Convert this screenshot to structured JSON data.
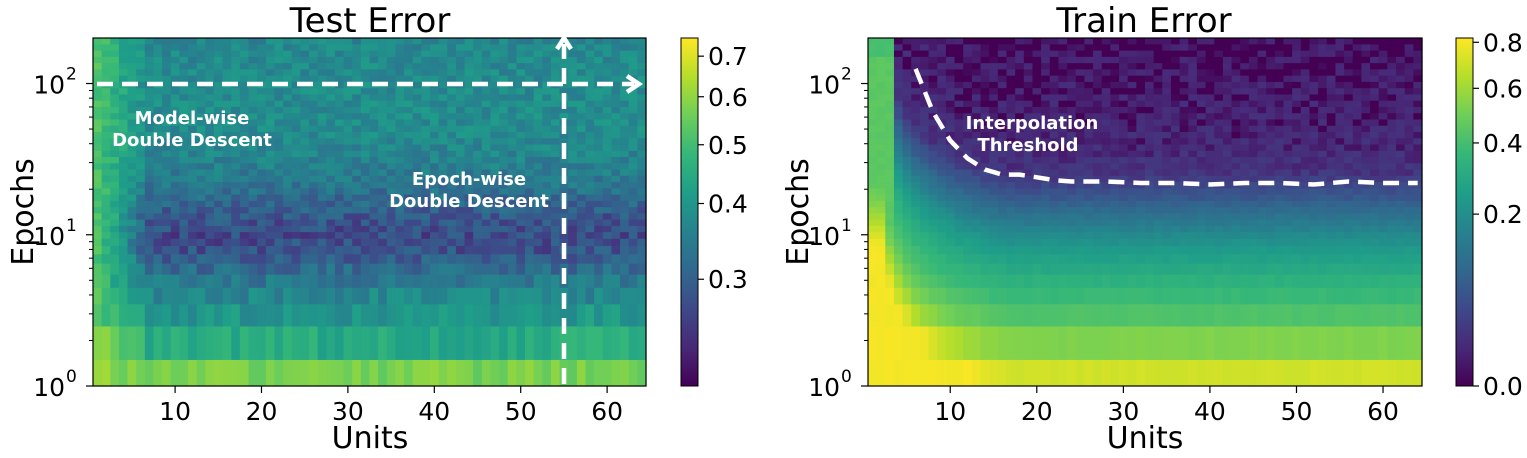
{
  "chart_data": [
    {
      "type": "heatmap",
      "title": "Test Error",
      "xlabel": "Units",
      "ylabel": "Epochs",
      "x_ticks": [
        "10",
        "20",
        "30",
        "40",
        "50",
        "60"
      ],
      "x_tick_values": [
        10,
        20,
        30,
        40,
        50,
        60
      ],
      "xlim": [
        0.5,
        64.5
      ],
      "y_scale": "log",
      "ylim": [
        1,
        200
      ],
      "y_ticks": [
        {
          "value": 1,
          "base": "10",
          "exp": "0"
        },
        {
          "value": 10,
          "base": "10",
          "exp": "1"
        },
        {
          "value": 100,
          "base": "10",
          "exp": "2"
        }
      ],
      "colorbar": {
        "min": 0.2,
        "max": 0.75,
        "ticks": [
          "0.3",
          "0.4",
          "0.5",
          "0.6",
          "0.7"
        ],
        "tick_values": [
          0.3,
          0.4,
          0.5,
          0.6,
          0.7
        ],
        "scale": "log",
        "colormap": "viridis"
      },
      "units_range": [
        1,
        64
      ],
      "profile_epochs": [
        1,
        1.5,
        2,
        3,
        4,
        5,
        7,
        8,
        10,
        12,
        15,
        20,
        30,
        50,
        100,
        200
      ],
      "profile_error": [
        0.62,
        0.52,
        0.44,
        0.4,
        0.37,
        0.34,
        0.3,
        0.28,
        0.27,
        0.28,
        0.3,
        0.33,
        0.36,
        0.38,
        0.38,
        0.37
      ],
      "small_model_error": 0.6,
      "annotations": [
        {
          "text_lines": [
            "Model-wise",
            "Double Descent"
          ],
          "arrow": "horizontal",
          "at_epoch": 100,
          "from_units": 1,
          "to_units": 64
        },
        {
          "text_lines": [
            "Epoch-wise",
            "Double Descent"
          ],
          "arrow": "vertical",
          "at_units": 55,
          "from_epoch": 1,
          "to_epoch": 200
        }
      ],
      "arrow_color": "#ffffff"
    },
    {
      "type": "heatmap",
      "title": "Train Error",
      "xlabel": "Units",
      "ylabel": "Epochs",
      "x_ticks": [
        "10",
        "20",
        "30",
        "40",
        "50",
        "60"
      ],
      "x_tick_values": [
        10,
        20,
        30,
        40,
        50,
        60
      ],
      "xlim": [
        0.5,
        64.5
      ],
      "y_scale": "log",
      "ylim": [
        1,
        200
      ],
      "y_ticks": [
        {
          "value": 1,
          "base": "10",
          "exp": "0"
        },
        {
          "value": 10,
          "base": "10",
          "exp": "1"
        },
        {
          "value": 100,
          "base": "10",
          "exp": "2"
        }
      ],
      "colorbar": {
        "min": 0.0,
        "max": 0.82,
        "ticks": [
          "0.0",
          "0.2",
          "0.4",
          "0.6",
          "0.8"
        ],
        "tick_values": [
          0.0,
          0.2,
          0.4,
          0.6,
          0.8
        ],
        "scale": "sqrt",
        "colormap": "viridis"
      },
      "units_range": [
        1,
        64
      ],
      "profile_epochs": [
        1,
        1.5,
        2,
        3,
        5,
        8,
        12,
        18,
        25,
        40,
        200
      ],
      "profile_error": [
        0.8,
        0.62,
        0.52,
        0.42,
        0.33,
        0.24,
        0.14,
        0.06,
        0.02,
        0.01,
        0.0
      ],
      "interpolation_threshold": {
        "label_lines": [
          "Interpolation",
          "Threshold"
        ],
        "units": [
          6,
          8,
          10,
          12,
          14,
          16,
          18,
          20,
          22,
          24,
          28,
          32,
          36,
          40,
          44,
          48,
          52,
          56,
          60,
          64
        ],
        "epochs": [
          125,
          65,
          42,
          32,
          27,
          25,
          25,
          24,
          23,
          22.5,
          22.5,
          22,
          22,
          21.5,
          22,
          22,
          21.5,
          22.5,
          22,
          22
        ]
      },
      "viridis_stops": [
        "#440154",
        "#482878",
        "#3e4989",
        "#31688e",
        "#26828e",
        "#1f9e89",
        "#35b779",
        "#6ece58",
        "#b5de2b",
        "#fde725"
      ]
    }
  ]
}
